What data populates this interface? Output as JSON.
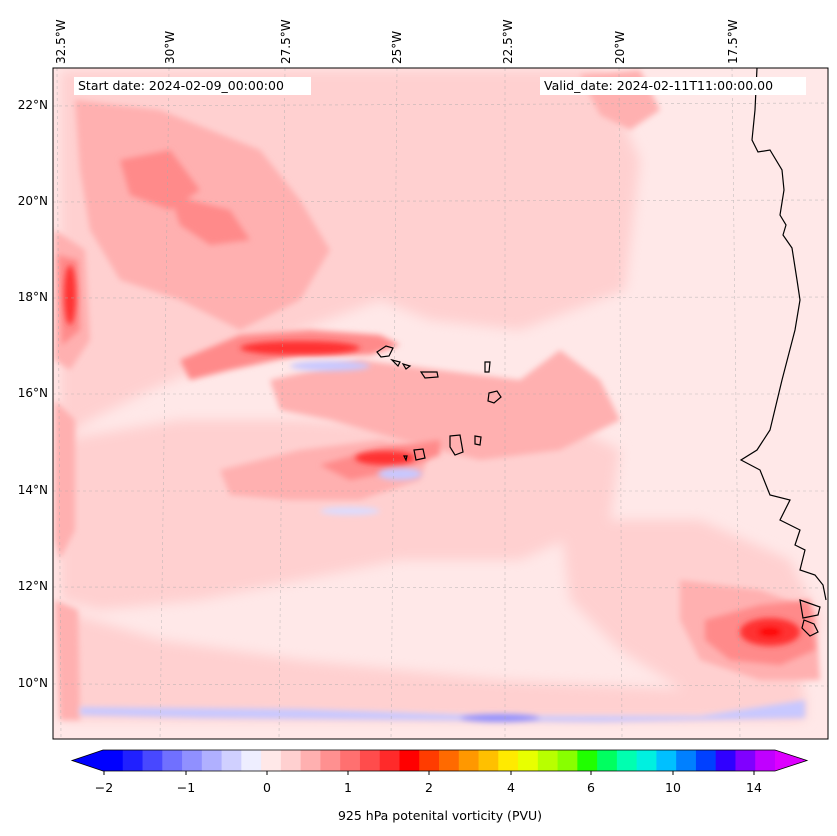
{
  "map": {
    "lon_labels": [
      "32.5°W",
      "30°W",
      "27.5°W",
      "25°W",
      "22.5°W",
      "20°W",
      "17.5°W"
    ],
    "lat_labels": [
      "22°N",
      "20°N",
      "18°N",
      "16°N",
      "14°N",
      "12°N",
      "10°N"
    ],
    "start_date": "Start date: 2024-02-09_00:00:00",
    "valid_date": "Valid_date: 2024-02-11T11:00:00.00",
    "field": "925 hPa potential vorticity",
    "colors": {
      "background_pv": "#ffe8e8",
      "low_pv": "#ffd0d0",
      "mid_pv": "#ffb0b0",
      "high_pv": "#ff8a8a",
      "max_pv": "#ff2020",
      "negative_pv": "#c8c8ff",
      "coastline": "#000000"
    }
  },
  "colorbar": {
    "title": "925 hPa potenital vorticity (PVU)",
    "tick_labels": [
      "−2",
      "−1",
      "0",
      "1",
      "2",
      "4",
      "6",
      "10",
      "14"
    ],
    "colors": [
      "#0000ff",
      "#2020ff",
      "#4848ff",
      "#7070ff",
      "#9090ff",
      "#b0b0ff",
      "#d0d0ff",
      "#eeeeff",
      "#ffe8e8",
      "#ffd0d0",
      "#ffb0b0",
      "#ff9090",
      "#ff7070",
      "#ff4c4c",
      "#ff2a2a",
      "#ff0000",
      "#ff3c00",
      "#ff6a00",
      "#ff9800",
      "#ffc000",
      "#ffea00",
      "#e8ff00",
      "#b8ff00",
      "#88ff00",
      "#20ff00",
      "#00ff60",
      "#00ffb0",
      "#00f0e0",
      "#00c0ff",
      "#0080ff",
      "#0040ff",
      "#3000ff",
      "#8000ff",
      "#c000ff"
    ]
  }
}
